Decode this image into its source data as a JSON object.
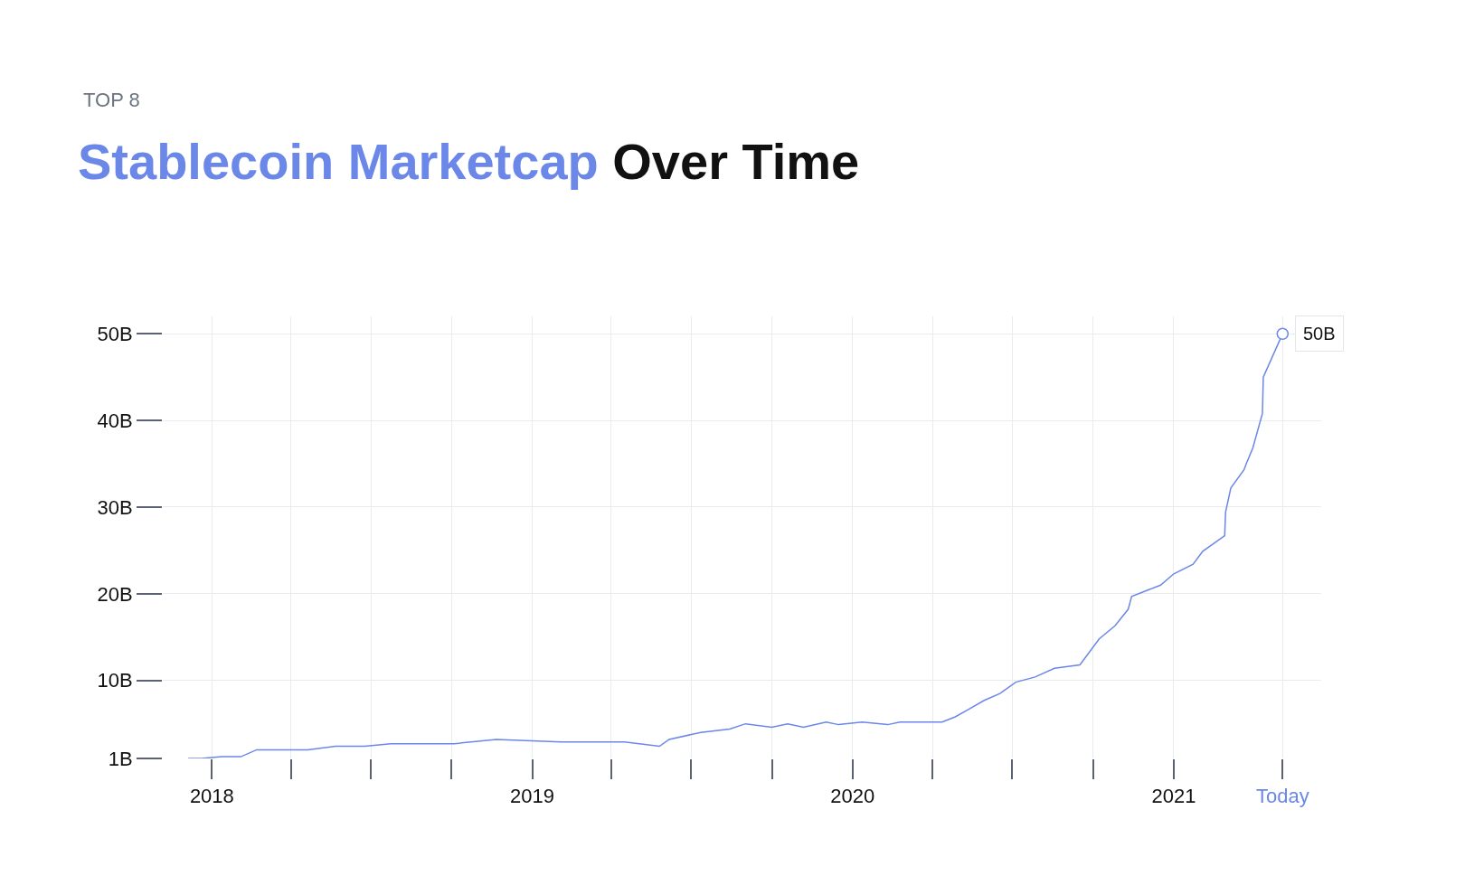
{
  "chart_data": {
    "type": "line",
    "subtitle": "TOP 8",
    "title": "Stablecoin Marketcap Over Time",
    "x": [
      "2017-12-05",
      "2017-12-20",
      "2018-01-12",
      "2018-02-03",
      "2018-02-21",
      "2018-04-20",
      "2018-05-22",
      "2018-06-24",
      "2018-07-24",
      "2018-10-04",
      "2018-11-21",
      "2019-02-03",
      "2019-04-16",
      "2019-05-26",
      "2019-06-06",
      "2019-07-12",
      "2019-08-14",
      "2019-09-01",
      "2019-10-01",
      "2019-10-19",
      "2019-11-06",
      "2019-12-02",
      "2019-12-16",
      "2020-01-12",
      "2020-02-10",
      "2020-02-24",
      "2020-04-12",
      "2020-04-27",
      "2020-05-11",
      "2020-05-30",
      "2020-06-17",
      "2020-07-05",
      "2020-07-27",
      "2020-08-18",
      "2020-09-16",
      "2020-10-08",
      "2020-10-26",
      "2020-11-10",
      "2020-11-14",
      "2020-12-17",
      "2021-01-01",
      "2021-01-23",
      "2021-02-03",
      "2021-02-28",
      "2021-03-01",
      "2021-03-07",
      "2021-03-22",
      "2021-03-25",
      "2021-04-01",
      "2021-04-12",
      "2021-04-13",
      "2021-05-05"
    ],
    "series": [
      {
        "color": "#6b87e8",
        "values": [
          1,
          1,
          1.2,
          1.2,
          2.0,
          2.0,
          2.4,
          2.4,
          2.7,
          2.7,
          3.2,
          2.9,
          2.9,
          2.4,
          3.2,
          4.0,
          4.4,
          5.0,
          4.6,
          5.0,
          4.6,
          5.2,
          4.9,
          5.2,
          4.9,
          5.2,
          5.2,
          5.8,
          6.6,
          7.7,
          8.5,
          9.8,
          10.4,
          11.4,
          11.8,
          14.8,
          16.3,
          18.2,
          19.7,
          21.0,
          22.3,
          23.4,
          24.9,
          26.7,
          29.4,
          32.2,
          34.3,
          35.1,
          36.8,
          40.8,
          45.0,
          50
        ]
      }
    ],
    "xlim": [
      "2017-11-06",
      "2021-06-18"
    ],
    "xticks": [
      {
        "value": "2018-01-01",
        "label": "2018"
      },
      {
        "value": "2018-04-01",
        "label": null
      },
      {
        "value": "2018-07-01",
        "label": null
      },
      {
        "value": "2018-10-01",
        "label": null
      },
      {
        "value": "2019-01-01",
        "label": "2019"
      },
      {
        "value": "2019-04-01",
        "label": null
      },
      {
        "value": "2019-07-01",
        "label": null
      },
      {
        "value": "2019-10-01",
        "label": null
      },
      {
        "value": "2020-01-01",
        "label": "2020"
      },
      {
        "value": "2020-04-01",
        "label": null
      },
      {
        "value": "2020-07-01",
        "label": null
      },
      {
        "value": "2020-10-01",
        "label": null
      },
      {
        "value": "2021-01-01",
        "label": "2021"
      },
      {
        "value": "2021-05-05",
        "label": "Today"
      }
    ],
    "ylim": [
      1,
      52
    ],
    "yticks": [
      {
        "value": 1,
        "label": "1B"
      },
      {
        "value": 10,
        "label": "10B"
      },
      {
        "value": 20,
        "label": "20B"
      },
      {
        "value": 30,
        "label": "30B"
      },
      {
        "value": 40,
        "label": "40B"
      },
      {
        "value": 50,
        "label": "50B"
      }
    ],
    "annotations": [
      {
        "text": "50B",
        "x": "2021-05-05",
        "y": 50
      }
    ],
    "grid": true,
    "marker": "none",
    "line_style": "solid"
  }
}
